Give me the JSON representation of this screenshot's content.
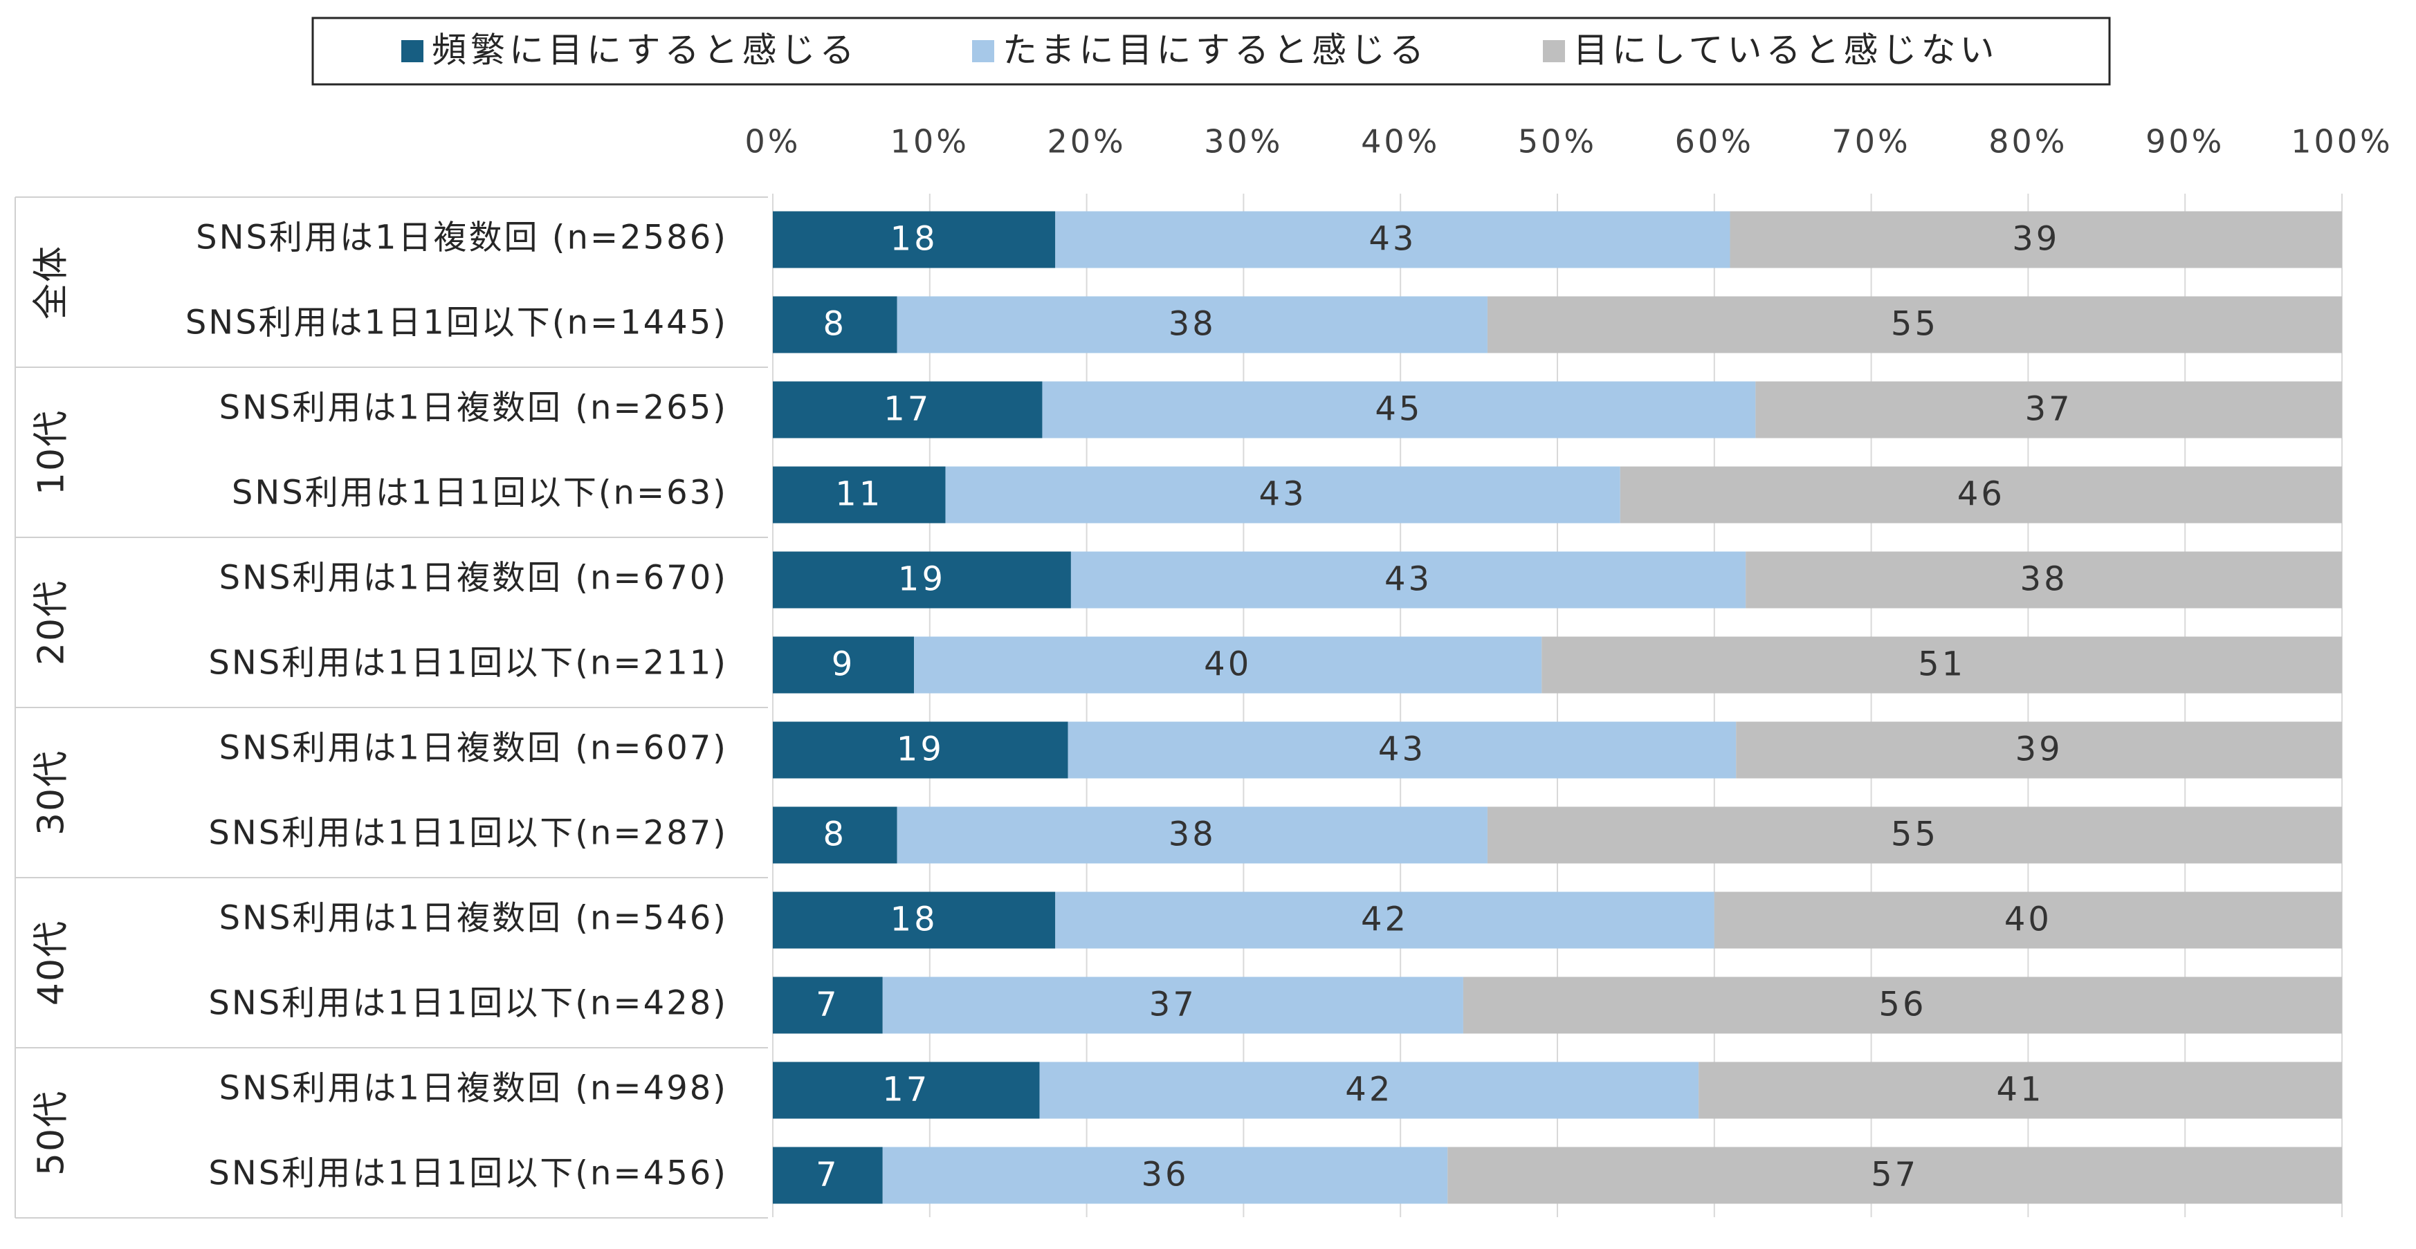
{
  "chart_data": {
    "type": "bar",
    "orientation": "horizontal",
    "stacked": "percent",
    "legend_position": "top",
    "xlim": [
      0,
      100
    ],
    "x_ticks": [
      "0%",
      "10%",
      "20%",
      "30%",
      "40%",
      "50%",
      "60%",
      "70%",
      "80%",
      "90%",
      "100%"
    ],
    "grid": true,
    "groups": [
      {
        "name": "全体",
        "rows": [
          "SNS利用は1日複数回 (n=2586)",
          "SNS利用は1日1回以下(n=1445)"
        ]
      },
      {
        "name": "10代",
        "rows": [
          "SNS利用は1日複数回 (n=265)",
          "SNS利用は1日1回以下(n=63)"
        ]
      },
      {
        "name": "20代",
        "rows": [
          "SNS利用は1日複数回 (n=670)",
          "SNS利用は1日1回以下(n=211)"
        ]
      },
      {
        "name": "30代",
        "rows": [
          "SNS利用は1日複数回 (n=607)",
          "SNS利用は1日1回以下(n=287)"
        ]
      },
      {
        "name": "40代",
        "rows": [
          "SNS利用は1日複数回 (n=546)",
          "SNS利用は1日1回以下(n=428)"
        ]
      },
      {
        "name": "50代",
        "rows": [
          "SNS利用は1日複数回 (n=498)",
          "SNS利用は1日1回以下(n=456)"
        ]
      }
    ],
    "series": [
      {
        "name": "頻繁に目にすると感じる",
        "color": "#175e82",
        "label_color": "#ffffff",
        "values": [
          18,
          8,
          17,
          11,
          19,
          9,
          19,
          8,
          18,
          7,
          17,
          7
        ]
      },
      {
        "name": "たまに目にすると感じる",
        "color": "#a6c8e8",
        "label_color": "#333333",
        "values": [
          43,
          38,
          45,
          43,
          43,
          40,
          43,
          38,
          42,
          37,
          42,
          36
        ]
      },
      {
        "name": "目にしていると感じない",
        "color": "#bfbfbf",
        "label_color": "#333333",
        "values": [
          39,
          55,
          37,
          46,
          38,
          51,
          39,
          55,
          40,
          56,
          41,
          57
        ]
      }
    ]
  }
}
